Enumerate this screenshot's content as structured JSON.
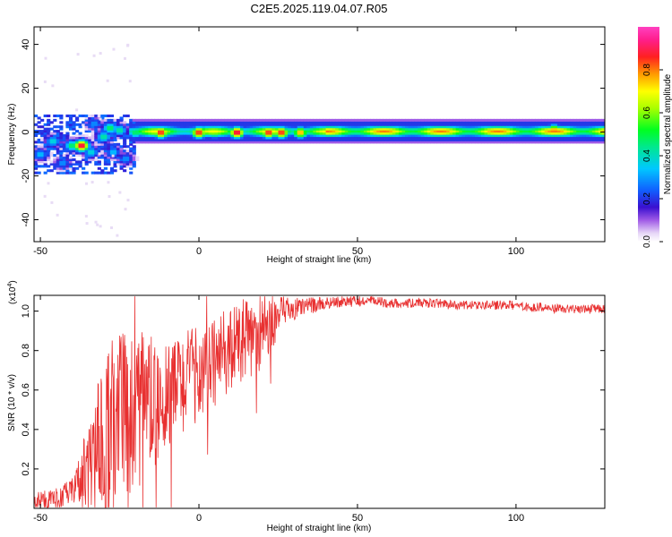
{
  "title": "C2E5.2025.119.04.07.R05",
  "chart_data": [
    {
      "type": "heatmap",
      "xlabel": "Height of straight line (km)",
      "ylabel": "Frequency (Hz)",
      "xlim": [
        -52,
        128
      ],
      "ylim": [
        -50,
        48
      ],
      "xticks": [
        -50,
        0,
        50,
        100
      ],
      "yticks": [
        -40,
        -20,
        0,
        20,
        40
      ],
      "colorbar": {
        "label": "Normalized spectral amplitude",
        "range": [
          0.0,
          1.0
        ],
        "ticks": [
          "0.0",
          "0.2",
          "0.4",
          "0.6",
          "0.8"
        ],
        "tick_values": [
          0.0,
          0.2,
          0.4,
          0.6,
          0.8
        ]
      },
      "band": {
        "center_hz": 0,
        "halfwidth_hz_far": 4,
        "note_values": "narrow band centered near 0 Hz, strongest (~0.5-0.9) along the center for x>-20 km; scattered blobs (0.2-0.9) for -50<x<-20 km between -18 and 8 Hz"
      },
      "hotspots": [
        {
          "x": -50,
          "y": -10,
          "v": 0.35
        },
        {
          "x": -46,
          "y": -4,
          "v": 0.4
        },
        {
          "x": -43,
          "y": -14,
          "v": 0.3
        },
        {
          "x": -40,
          "y": -6,
          "v": 0.5
        },
        {
          "x": -37,
          "y": -6,
          "v": 0.95
        },
        {
          "x": -34,
          "y": -9,
          "v": 0.4
        },
        {
          "x": -33,
          "y": 4,
          "v": 0.3
        },
        {
          "x": -30,
          "y": -2,
          "v": 0.45
        },
        {
          "x": -28,
          "y": 2,
          "v": 0.5
        },
        {
          "x": -27,
          "y": -9,
          "v": 0.35
        },
        {
          "x": -25,
          "y": 1,
          "v": 0.45
        },
        {
          "x": -23,
          "y": -12,
          "v": 0.3
        },
        {
          "x": -20,
          "y": 0,
          "v": 0.5
        },
        {
          "x": -12,
          "y": 0,
          "v": 0.9
        },
        {
          "x": 0,
          "y": 0,
          "v": 0.9
        },
        {
          "x": 5,
          "y": 0,
          "v": 0.6
        },
        {
          "x": 12,
          "y": 0,
          "v": 0.95
        },
        {
          "x": 22,
          "y": 0,
          "v": 0.9
        },
        {
          "x": 26,
          "y": 0,
          "v": 0.9
        },
        {
          "x": 32,
          "y": 0,
          "v": 0.8
        },
        {
          "x": 112,
          "y": 1,
          "v": 0.8
        }
      ]
    },
    {
      "type": "line",
      "xlabel": "Height of straight line (km)",
      "ylabel": "SNR (10 * v/v)",
      "y_multiplier": "(x10",
      "y_multiplier_exp": "4",
      "xlim": [
        -52,
        128
      ],
      "ylim": [
        0.0,
        1.08
      ],
      "xticks": [
        -50,
        0,
        50,
        100
      ],
      "yticks": [
        0.2,
        0.4,
        0.6,
        0.8,
        1.0
      ],
      "ytick_labels": [
        "0.2",
        "0.4",
        "0.6",
        "0.8",
        "1.0"
      ],
      "series": [
        {
          "color": "#e83030",
          "trend_x": [
            -52,
            -48,
            -44,
            -40,
            -36,
            -32,
            -28,
            -24,
            -20,
            -16,
            -12,
            -8,
            -4,
            0,
            4,
            8,
            12,
            16,
            20,
            24,
            28,
            32,
            36,
            40,
            44,
            48,
            52,
            56,
            60,
            64,
            68,
            72,
            76,
            80,
            84,
            88,
            92,
            96,
            100,
            104,
            108,
            112,
            116,
            120,
            124,
            128
          ],
          "trend_y": [
            0.04,
            0.04,
            0.05,
            0.09,
            0.17,
            0.28,
            0.38,
            0.44,
            0.48,
            0.52,
            0.56,
            0.61,
            0.65,
            0.69,
            0.73,
            0.78,
            0.82,
            0.86,
            0.9,
            0.96,
            1.0,
            1.02,
            1.03,
            1.04,
            1.05,
            1.05,
            1.05,
            1.05,
            1.04,
            1.04,
            1.04,
            1.04,
            1.04,
            1.03,
            1.03,
            1.03,
            1.03,
            1.03,
            1.03,
            1.02,
            1.02,
            1.01,
            1.01,
            1.01,
            1.01,
            1.01
          ],
          "noise_x": [
            -52,
            -40,
            -34,
            -28,
            -22,
            -16,
            -10,
            -4,
            2,
            8,
            14,
            20,
            26,
            32,
            40,
            60,
            90,
            128
          ],
          "noise_y": [
            0.03,
            0.04,
            0.18,
            0.3,
            0.28,
            0.22,
            0.18,
            0.16,
            0.15,
            0.14,
            0.14,
            0.12,
            0.06,
            0.03,
            0.02,
            0.015,
            0.015,
            0.015
          ]
        }
      ]
    }
  ]
}
